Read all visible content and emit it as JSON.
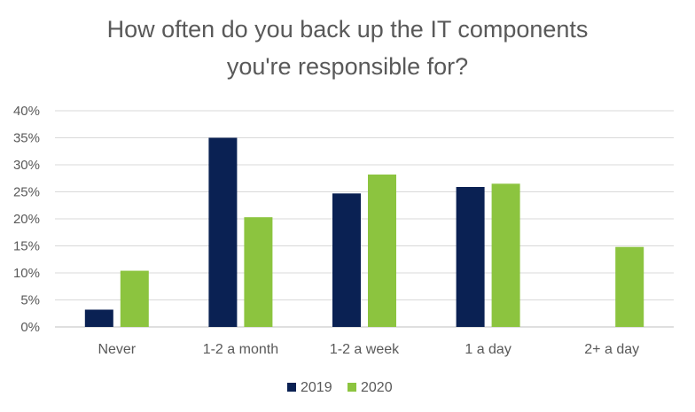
{
  "chart_data": {
    "type": "bar",
    "title_lines": [
      "How often do you back up the IT components",
      "you're responsible for?"
    ],
    "categories": [
      "Never",
      "1-2 a month",
      "1-2 a week",
      "1 a day",
      "2+ a day"
    ],
    "series": [
      {
        "name": "2019",
        "values": [
          3.2,
          35.0,
          24.7,
          25.9,
          null
        ],
        "color": "#0a2153"
      },
      {
        "name": "2020",
        "values": [
          10.4,
          20.3,
          28.2,
          26.5,
          14.8
        ],
        "color": "#8cc43f"
      }
    ],
    "y_ticks": [
      "0%",
      "5%",
      "10%",
      "15%",
      "20%",
      "25%",
      "30%",
      "35%",
      "40%"
    ],
    "ylim": [
      0,
      40
    ],
    "y_unit": "%",
    "grid": true,
    "legend_position": "bottom"
  }
}
